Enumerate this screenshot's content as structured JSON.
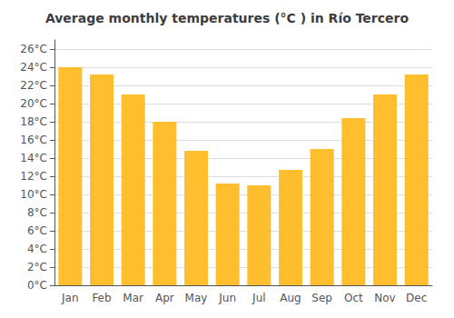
{
  "chart_data": {
    "type": "bar",
    "title": "Average monthly temperatures (°C ) in Río Tercero",
    "categories": [
      "Jan",
      "Feb",
      "Mar",
      "Apr",
      "May",
      "Jun",
      "Jul",
      "Aug",
      "Sep",
      "Oct",
      "Nov",
      "Dec"
    ],
    "values": [
      24.0,
      23.2,
      21.0,
      18.0,
      14.8,
      11.2,
      11.0,
      12.7,
      15.0,
      18.4,
      21.0,
      23.2
    ],
    "color": "#FFBE2D",
    "ylim": [
      0,
      27
    ],
    "yticks": [
      {
        "value": 0,
        "label": "0°C"
      },
      {
        "value": 2,
        "label": "2°C"
      },
      {
        "value": 4,
        "label": "4°C"
      },
      {
        "value": 6,
        "label": "6°C"
      },
      {
        "value": 8,
        "label": "8°C"
      },
      {
        "value": 10,
        "label": "10°C"
      },
      {
        "value": 12,
        "label": "12°C"
      },
      {
        "value": 14,
        "label": "14°C"
      },
      {
        "value": 16,
        "label": "16°C"
      },
      {
        "value": 18,
        "label": "18°C"
      },
      {
        "value": 20,
        "label": "20°C"
      },
      {
        "value": 22,
        "label": "22°C"
      },
      {
        "value": 24,
        "label": "24°C"
      },
      {
        "value": 26,
        "label": "26°C"
      }
    ],
    "grid": true
  }
}
